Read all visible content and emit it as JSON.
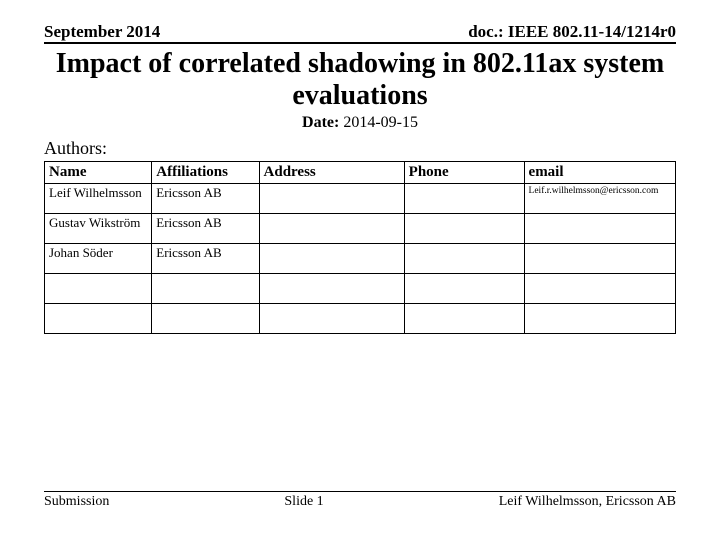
{
  "header": {
    "date_left": "September 2014",
    "doc_right": "doc.: IEEE 802.11-14/1214r0"
  },
  "title": "Impact of correlated shadowing in 802.11ax system evaluations",
  "date": {
    "label": "Date:",
    "value": "2014-09-15"
  },
  "authors_label": "Authors:",
  "table": {
    "columns": [
      "Name",
      "Affiliations",
      "Address",
      "Phone",
      "email"
    ],
    "rows": [
      {
        "name": "Leif Wilhelmsson",
        "affiliation": "Ericsson AB",
        "address": "",
        "phone": "",
        "email": "Leif.r.wilhelmsson@ericsson.com"
      },
      {
        "name": "Gustav Wikström",
        "affiliation": "Ericsson AB",
        "address": "",
        "phone": "",
        "email": ""
      },
      {
        "name": "Johan Söder",
        "affiliation": "Ericsson AB",
        "address": "",
        "phone": "",
        "email": ""
      },
      {
        "name": "",
        "affiliation": "",
        "address": "",
        "phone": "",
        "email": ""
      },
      {
        "name": "",
        "affiliation": "",
        "address": "",
        "phone": "",
        "email": ""
      }
    ]
  },
  "footer": {
    "left": "Submission",
    "center": "Slide 1",
    "right": "Leif Wilhelmsson, Ericsson AB"
  }
}
